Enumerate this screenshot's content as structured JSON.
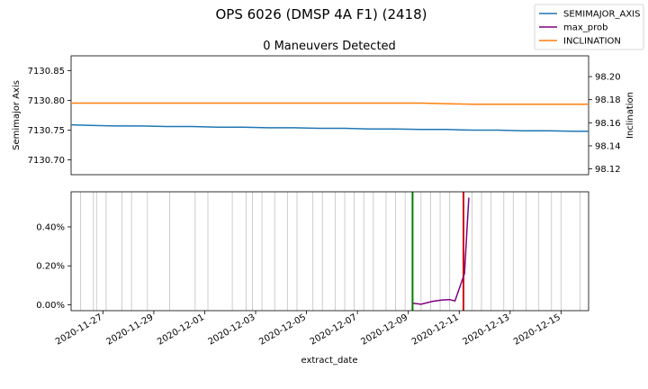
{
  "figure": {
    "suptitle": "OPS 6026 (DMSP 4A F1) (2418)"
  },
  "legend": {
    "placement": "top-right",
    "entries": [
      {
        "label": "SEMIMAJOR_AXIS",
        "color": "#1f77b4"
      },
      {
        "label": "max_prob",
        "color": "#800080"
      },
      {
        "label": "INCLINATION",
        "color": "#ff7f0e"
      }
    ]
  },
  "chart_data": [
    {
      "type": "line",
      "title": "0 Maneuvers Detected",
      "xlabel": "",
      "ylabel": "Semimajor Axis",
      "ylabel_right": "Inclination",
      "xlim": [
        "2020-11-25 18:00",
        "2020-12-16 02:00"
      ],
      "ylim": [
        7130.675,
        7130.875
      ],
      "ylim_right": [
        98.115,
        98.218
      ],
      "yticks": [
        "7130.70",
        "7130.75",
        "7130.80",
        "7130.85"
      ],
      "yticks_right": [
        "98.12",
        "98.14",
        "98.16",
        "98.18",
        "98.20"
      ],
      "series": [
        {
          "name": "SEMIMAJOR_AXIS",
          "axis": "left",
          "color": "#1f77b4",
          "x": [
            "2020-11-25 18:00",
            "2020-11-26 12:00",
            "2020-11-27 12:00",
            "2020-11-28 12:00",
            "2020-11-29 12:00",
            "2020-11-30 12:00",
            "2020-12-01 12:00",
            "2020-12-02 12:00",
            "2020-12-03 12:00",
            "2020-12-04 12:00",
            "2020-12-05 12:00",
            "2020-12-06 12:00",
            "2020-12-07 12:00",
            "2020-12-08 12:00",
            "2020-12-09 12:00",
            "2020-12-10 12:00",
            "2020-12-11 12:00",
            "2020-12-12 12:00",
            "2020-12-13 12:00",
            "2020-12-14 12:00",
            "2020-12-15 12:00",
            "2020-12-16 02:00"
          ],
          "values": [
            7130.759,
            7130.758,
            7130.757,
            7130.757,
            7130.756,
            7130.756,
            7130.755,
            7130.755,
            7130.754,
            7130.754,
            7130.753,
            7130.753,
            7130.752,
            7130.752,
            7130.751,
            7130.751,
            7130.75,
            7130.75,
            7130.749,
            7130.749,
            7130.748,
            7130.748
          ]
        },
        {
          "name": "INCLINATION",
          "axis": "right",
          "color": "#ff7f0e",
          "x": [
            "2020-11-25 18:00",
            "2020-11-27 12:00",
            "2020-11-29 12:00",
            "2020-12-01 12:00",
            "2020-12-03 12:00",
            "2020-12-05 12:00",
            "2020-12-07 12:00",
            "2020-12-09 12:00",
            "2020-12-11 12:00",
            "2020-12-13 12:00",
            "2020-12-15 12:00",
            "2020-12-16 02:00"
          ],
          "values": [
            98.177,
            98.177,
            98.177,
            98.177,
            98.177,
            98.177,
            98.177,
            98.177,
            98.176,
            98.176,
            98.176,
            98.176
          ]
        }
      ]
    },
    {
      "type": "line",
      "title": "",
      "xlabel": "extract_date",
      "ylabel": "",
      "xlim": [
        "2020-11-25 18:00",
        "2020-12-16 02:00"
      ],
      "ylim": [
        -0.0003,
        0.0058
      ],
      "yticks": [
        "0.00%",
        "0.20%",
        "0.40%"
      ],
      "xticks": [
        "2020-11-27",
        "2020-11-29",
        "2020-12-01",
        "2020-12-03",
        "2020-12-05",
        "2020-12-07",
        "2020-12-09",
        "2020-12-11",
        "2020-12-13",
        "2020-12-15"
      ],
      "series": [
        {
          "name": "max_prob",
          "color": "#800080",
          "x": [
            "2020-12-09 04:30",
            "2020-12-09 12:00",
            "2020-12-09 23:00",
            "2020-12-10 08:00",
            "2020-12-10 15:00",
            "2020-12-10 20:00",
            "2020-12-11 05:00",
            "2020-12-11 09:00"
          ],
          "values": [
            8e-05,
            3e-05,
            0.00018,
            0.00025,
            0.00027,
            0.0002,
            0.0016,
            0.0055
          ]
        }
      ],
      "maneuver_line_green": "2020-12-09 04:00",
      "maneuver_line_red": "2020-12-11 04:00",
      "data_gridlines": [
        "2020-11-26 03:00",
        "2020-11-26 15:00",
        "2020-11-26 18:00",
        "2020-11-27 03:00",
        "2020-11-27 18:00",
        "2020-11-28 03:00",
        "2020-11-28 18:00",
        "2020-11-29 15:00",
        "2020-11-30 15:00",
        "2020-12-01 03:00",
        "2020-12-02 02:00",
        "2020-12-02 15:00",
        "2020-12-02 21:00",
        "2020-12-03 06:00",
        "2020-12-03 18:00",
        "2020-12-04 06:00",
        "2020-12-04 15:00",
        "2020-12-05 06:00",
        "2020-12-05 15:00",
        "2020-12-06 03:00",
        "2020-12-06 12:00",
        "2020-12-06 21:00",
        "2020-12-07 06:00",
        "2020-12-07 15:00",
        "2020-12-08 03:00",
        "2020-12-08 12:00",
        "2020-12-08 21:00",
        "2020-12-09 12:00",
        "2020-12-09 21:00",
        "2020-12-10 06:00",
        "2020-12-10 15:00",
        "2020-12-11 12:00",
        "2020-12-11 21:00",
        "2020-12-12 06:00",
        "2020-12-12 18:00",
        "2020-12-13 03:00",
        "2020-12-13 15:00",
        "2020-12-14 03:00",
        "2020-12-14 15:00",
        "2020-12-15 00:00",
        "2020-12-15 18:00"
      ]
    }
  ]
}
